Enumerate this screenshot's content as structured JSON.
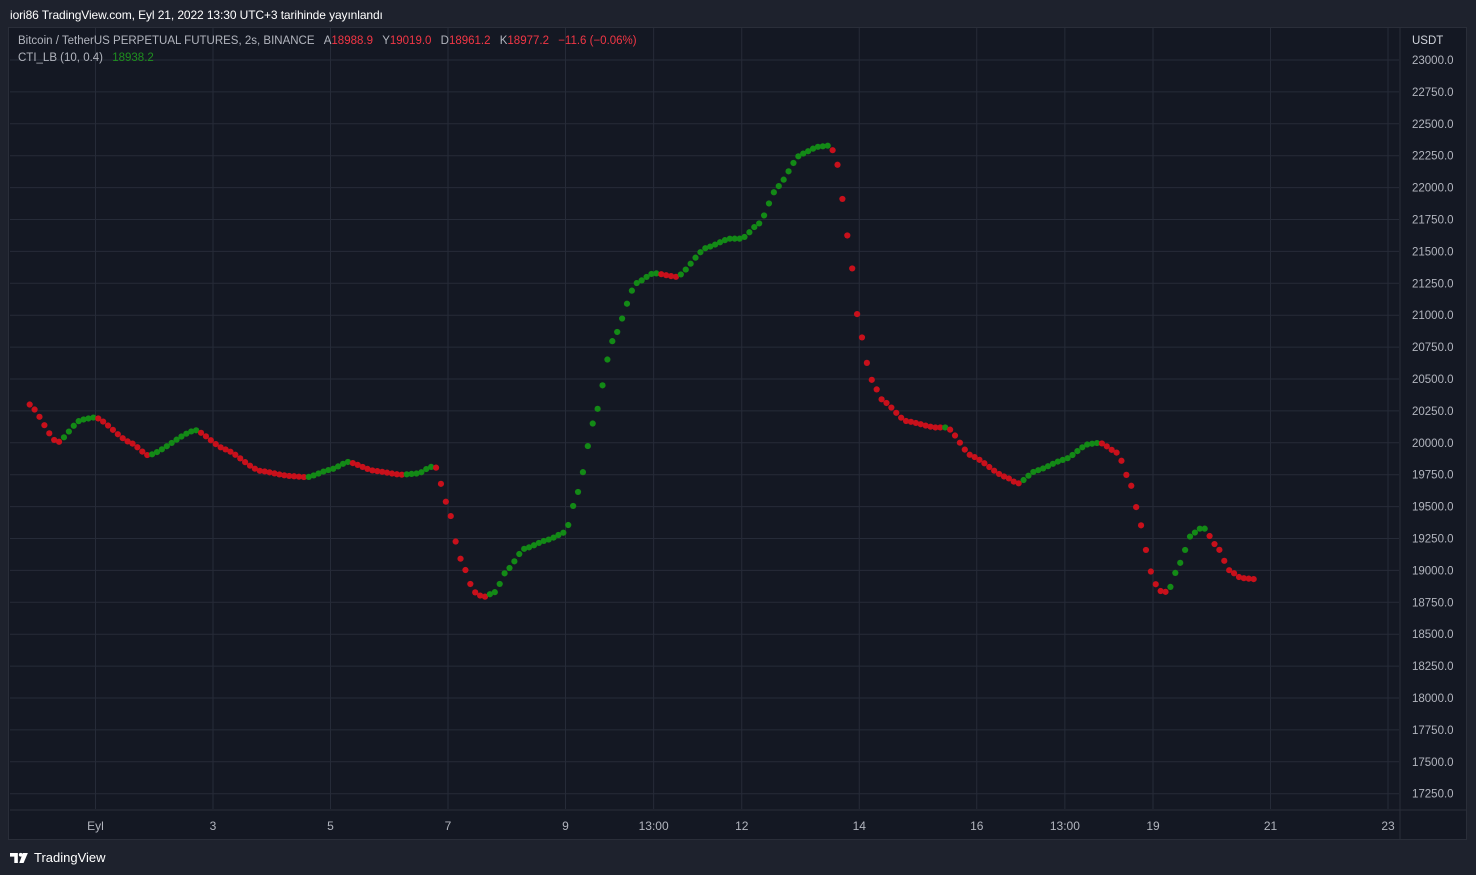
{
  "header": {
    "publish_text": "iori86 TradingView.com, Eyl 21, 2022 13:30 UTC+3 tarihinde yayınlandı"
  },
  "legend": {
    "symbol": "Bitcoin / TetherUS PERPETUAL FUTURES, 2s, BINANCE",
    "ohlc": [
      {
        "key": "A",
        "value": "18988.9"
      },
      {
        "key": "Y",
        "value": "19019.0"
      },
      {
        "key": "D",
        "value": "18961.2"
      },
      {
        "key": "K",
        "value": "18977.2"
      }
    ],
    "change": "−11.6 (−0.06%)",
    "indicator_name": "CTI_LB (10, 0.4)",
    "indicator_value": "18938.2"
  },
  "footer": {
    "brand": "TradingView"
  },
  "colors": {
    "up": "#138a16",
    "down": "#c8101b",
    "background": "#141823",
    "grid": "#262b38",
    "axis_text": "#b2b5be"
  },
  "chart_data": {
    "type": "scatter",
    "currency_label": "USDT",
    "ylim": [
      17100,
      23100
    ],
    "y_ticks": [
      "23000.0",
      "22750.0",
      "22500.0",
      "22250.0",
      "22000.0",
      "21750.0",
      "21500.0",
      "21250.0",
      "21000.0",
      "20750.0",
      "20500.0",
      "20250.0",
      "20000.0",
      "19750.0",
      "19500.0",
      "19250.0",
      "19000.0",
      "18750.0",
      "18500.0",
      "18250.0",
      "18000.0",
      "17750.0",
      "17500.0",
      "17250.0"
    ],
    "x_range_days": [
      -1.15,
      23.1
    ],
    "x_ticks": [
      {
        "label": "Eyl",
        "day": 0
      },
      {
        "label": "3",
        "day": 2
      },
      {
        "label": "5",
        "day": 4
      },
      {
        "label": "7",
        "day": 6
      },
      {
        "label": "9",
        "day": 8
      },
      {
        "label": "13:00",
        "day": 9.5
      },
      {
        "label": "12",
        "day": 11
      },
      {
        "label": "14",
        "day": 13
      },
      {
        "label": "16",
        "day": 15
      },
      {
        "label": "13:00",
        "day": 16.5
      },
      {
        "label": "19",
        "day": 18
      },
      {
        "label": "21",
        "day": 20
      },
      {
        "label": "23",
        "day": 22
      }
    ],
    "series": [
      {
        "name": "CTI_LB (10, 0.4)",
        "anchors": [
          [
            -1.12,
            20300
          ],
          [
            -0.65,
            20000
          ],
          [
            -0.25,
            20180
          ],
          [
            0.0,
            20200
          ],
          [
            0.6,
            20000
          ],
          [
            0.9,
            19900
          ],
          [
            1.7,
            20100
          ],
          [
            2.2,
            19950
          ],
          [
            2.8,
            19780
          ],
          [
            3.3,
            19740
          ],
          [
            3.6,
            19730
          ],
          [
            4.0,
            19790
          ],
          [
            4.3,
            19850
          ],
          [
            4.75,
            19780
          ],
          [
            5.2,
            19750
          ],
          [
            5.5,
            19760
          ],
          [
            5.7,
            19810
          ],
          [
            5.78,
            19820
          ],
          [
            6.0,
            19500
          ],
          [
            6.2,
            19100
          ],
          [
            6.45,
            18830
          ],
          [
            6.6,
            18790
          ],
          [
            6.8,
            18830
          ],
          [
            7.0,
            19000
          ],
          [
            7.3,
            19170
          ],
          [
            7.7,
            19240
          ],
          [
            8.0,
            19300
          ],
          [
            8.2,
            19600
          ],
          [
            8.5,
            20200
          ],
          [
            8.8,
            20800
          ],
          [
            9.2,
            21250
          ],
          [
            9.5,
            21330
          ],
          [
            9.9,
            21300
          ],
          [
            10.4,
            21530
          ],
          [
            10.8,
            21600
          ],
          [
            11.0,
            21600
          ],
          [
            11.3,
            21720
          ],
          [
            11.6,
            22000
          ],
          [
            12.0,
            22260
          ],
          [
            12.3,
            22320
          ],
          [
            12.5,
            22330
          ],
          [
            12.6,
            22250
          ],
          [
            12.72,
            21900
          ],
          [
            12.85,
            21450
          ],
          [
            13.0,
            20900
          ],
          [
            13.2,
            20500
          ],
          [
            13.4,
            20330
          ],
          [
            13.8,
            20170
          ],
          [
            14.3,
            20120
          ],
          [
            14.5,
            20120
          ],
          [
            14.9,
            19900
          ],
          [
            15.5,
            19730
          ],
          [
            15.7,
            19680
          ],
          [
            16.0,
            19780
          ],
          [
            16.5,
            19870
          ],
          [
            16.9,
            19990
          ],
          [
            17.1,
            20000
          ],
          [
            17.4,
            19920
          ],
          [
            17.6,
            19700
          ],
          [
            17.8,
            19350
          ],
          [
            17.95,
            19000
          ],
          [
            18.1,
            18840
          ],
          [
            18.25,
            18830
          ],
          [
            18.45,
            19050
          ],
          [
            18.65,
            19280
          ],
          [
            18.85,
            19340
          ],
          [
            19.1,
            19180
          ],
          [
            19.3,
            19000
          ],
          [
            19.5,
            18940
          ],
          [
            19.78,
            18930
          ]
        ]
      }
    ]
  }
}
